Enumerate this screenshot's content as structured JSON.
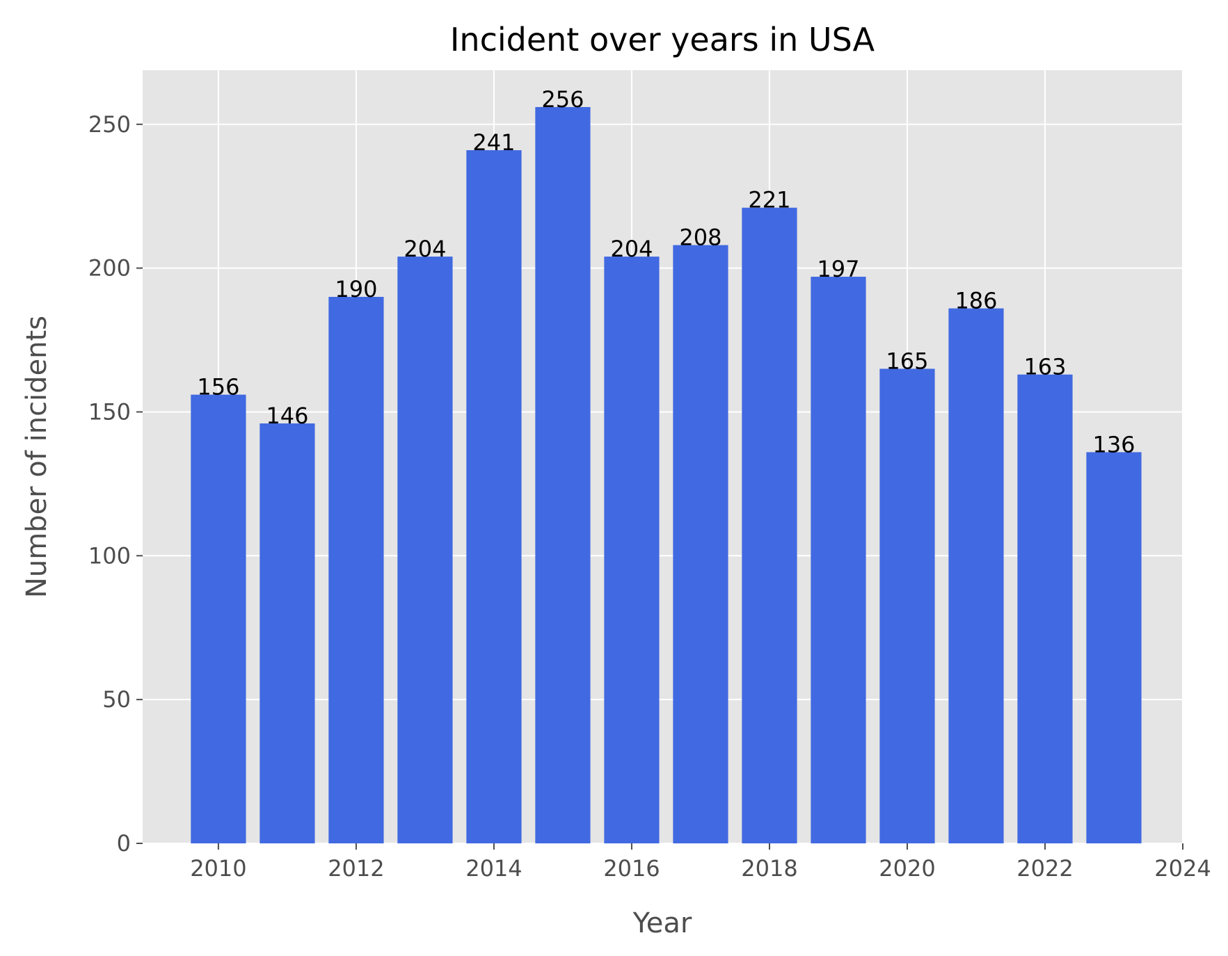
{
  "chart_data": {
    "type": "bar",
    "title": "Incident over years in USA",
    "xlabel": "Year",
    "ylabel": "Number of incidents",
    "x": [
      2010,
      2011,
      2012,
      2013,
      2014,
      2015,
      2016,
      2017,
      2018,
      2019,
      2020,
      2021,
      2022,
      2023
    ],
    "values": [
      156,
      146,
      190,
      204,
      241,
      256,
      204,
      208,
      221,
      197,
      165,
      186,
      163,
      136
    ],
    "xlim": [
      2008.9,
      2024.0
    ],
    "ylim": [
      0,
      268.8
    ],
    "xticks": [
      2010,
      2012,
      2014,
      2016,
      2018,
      2020,
      2022,
      2024
    ],
    "yticks": [
      0,
      50,
      100,
      150,
      200,
      250
    ],
    "bar_width": 0.8,
    "grid": true,
    "style": "ggplot",
    "colors": {
      "bar": "#4169e1",
      "plot_background": "#e5e5e5",
      "grid": "#ffffff",
      "figure_background": "#ffffff"
    }
  }
}
